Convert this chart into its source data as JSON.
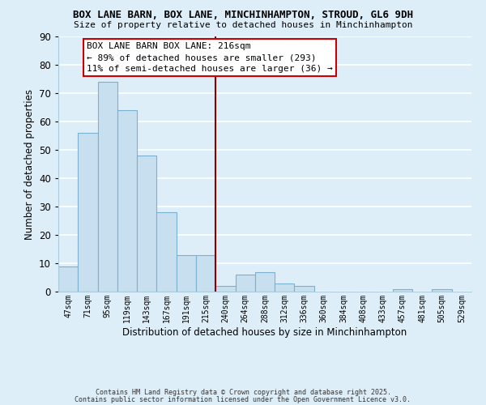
{
  "title": "BOX LANE BARN, BOX LANE, MINCHINHAMPTON, STROUD, GL6 9DH",
  "subtitle": "Size of property relative to detached houses in Minchinhampton",
  "xlabel": "Distribution of detached houses by size in Minchinhampton",
  "ylabel": "Number of detached properties",
  "bar_color": "#c8dff0",
  "bar_edge_color": "#7ab0d0",
  "background_color": "#deeef8",
  "grid_color": "white",
  "bins": [
    "47sqm",
    "71sqm",
    "95sqm",
    "119sqm",
    "143sqm",
    "167sqm",
    "191sqm",
    "215sqm",
    "240sqm",
    "264sqm",
    "288sqm",
    "312sqm",
    "336sqm",
    "360sqm",
    "384sqm",
    "408sqm",
    "433sqm",
    "457sqm",
    "481sqm",
    "505sqm",
    "529sqm"
  ],
  "values": [
    9,
    56,
    74,
    64,
    48,
    28,
    13,
    13,
    2,
    6,
    7,
    3,
    2,
    0,
    0,
    0,
    0,
    1,
    0,
    1,
    0
  ],
  "ylim": [
    0,
    90
  ],
  "yticks": [
    0,
    10,
    20,
    30,
    40,
    50,
    60,
    70,
    80,
    90
  ],
  "vline_x": 7.5,
  "vline_color": "#8b0000",
  "annotation_title": "BOX LANE BARN BOX LANE: 216sqm",
  "annotation_line1": "← 89% of detached houses are smaller (293)",
  "annotation_line2": "11% of semi-detached houses are larger (36) →",
  "footer1": "Contains HM Land Registry data © Crown copyright and database right 2025.",
  "footer2": "Contains public sector information licensed under the Open Government Licence v3.0."
}
